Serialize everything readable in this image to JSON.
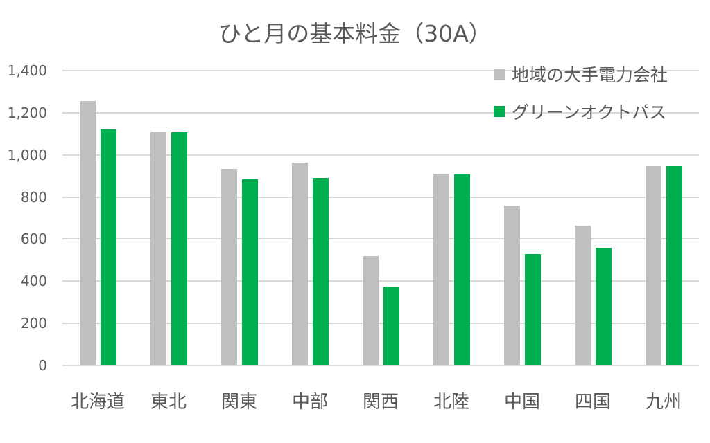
{
  "chart_data": {
    "type": "bar",
    "title": "ひと月の基本料金（30A）",
    "xlabel": "",
    "ylabel": "",
    "ylim": [
      0,
      1400
    ],
    "yticks": [
      "0",
      "200",
      "400",
      "600",
      "800",
      "1,000",
      "1,200",
      "1,400"
    ],
    "ytick_values": [
      0,
      200,
      400,
      600,
      800,
      1000,
      1200,
      1400
    ],
    "grid": true,
    "legend_position": "top-right",
    "categories": [
      "北海道",
      "東北",
      "関東",
      "中部",
      "関西",
      "北陸",
      "中国",
      "四国",
      "九州"
    ],
    "series": [
      {
        "name": "地域の大手電力会社",
        "color": "#bfbfbf",
        "values": [
          1254,
          1108,
          933,
          963,
          519,
          907,
          759,
          664,
          946
        ]
      },
      {
        "name": "グリーンオクトパス",
        "color": "#00b050",
        "values": [
          1121,
          1108,
          884,
          891,
          375,
          907,
          529,
          559,
          946
        ]
      }
    ]
  }
}
